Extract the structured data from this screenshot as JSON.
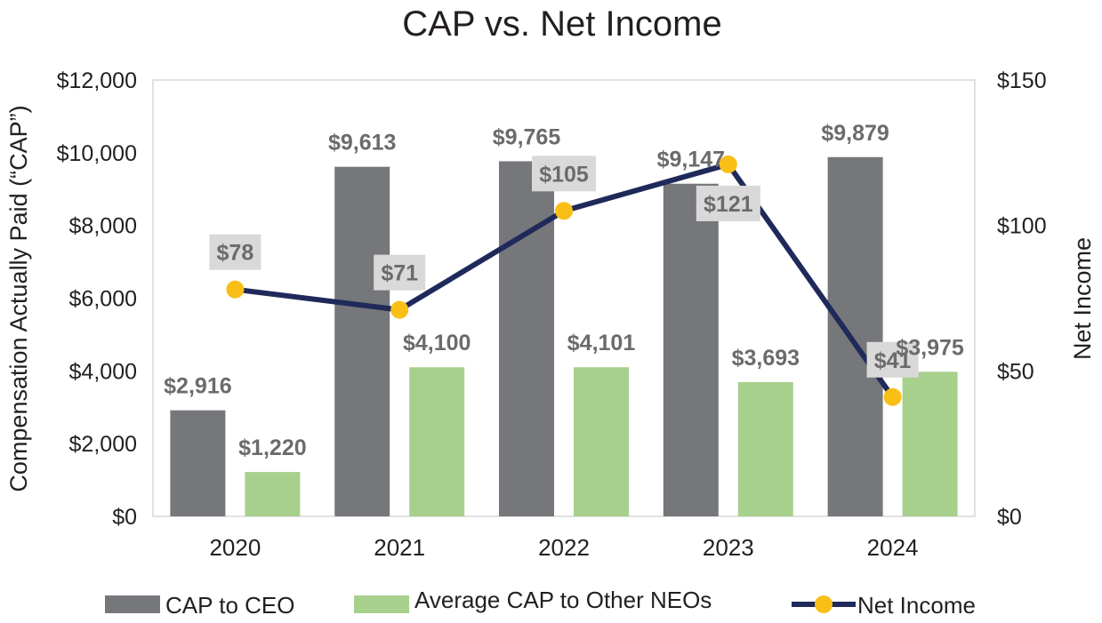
{
  "chart_data": {
    "type": "bar",
    "title": "CAP vs. Net Income",
    "categories": [
      "2020",
      "2021",
      "2022",
      "2023",
      "2024"
    ],
    "ylabel": "Compensation Actually Paid (“CAP”)",
    "y2label": "Net Income",
    "ylim": [
      0,
      12000
    ],
    "y2lim": [
      0,
      150
    ],
    "yticks": [
      "$0",
      "$2,000",
      "$4,000",
      "$6,000",
      "$8,000",
      "$10,000",
      "$12,000"
    ],
    "y2ticks": [
      "$0",
      "$50",
      "$100",
      "$150"
    ],
    "series": [
      {
        "name": "CAP to CEO",
        "kind": "bar",
        "axis": "left",
        "values": [
          2916,
          9613,
          9765,
          9147,
          9879
        ],
        "labels": [
          "$2,916",
          "$9,613",
          "$9,765",
          "$9,147",
          "$9,879"
        ]
      },
      {
        "name": "Average CAP to Other NEOs",
        "kind": "bar",
        "axis": "left",
        "values": [
          1220,
          4100,
          4101,
          3693,
          3975
        ],
        "labels": [
          "$1,220",
          "$4,100",
          "$4,101",
          "$3,693",
          "$3,975"
        ]
      },
      {
        "name": "Net Income",
        "kind": "line",
        "axis": "right",
        "values": [
          78,
          71,
          105,
          121,
          41
        ],
        "labels": [
          "$78",
          "$71",
          "$105",
          "$121",
          "$41"
        ]
      }
    ],
    "legend": "bottom",
    "grid": false
  },
  "colors": {
    "ceo_bar": "#76777b",
    "neo_bar": "#a8d08d",
    "line": "#1f2a5a",
    "marker": "#f9bf17",
    "label_text": "#6b6b6b",
    "label_box": "#d9d9d9",
    "frame": "#d9d9d9",
    "axis_text": "#231f20"
  }
}
